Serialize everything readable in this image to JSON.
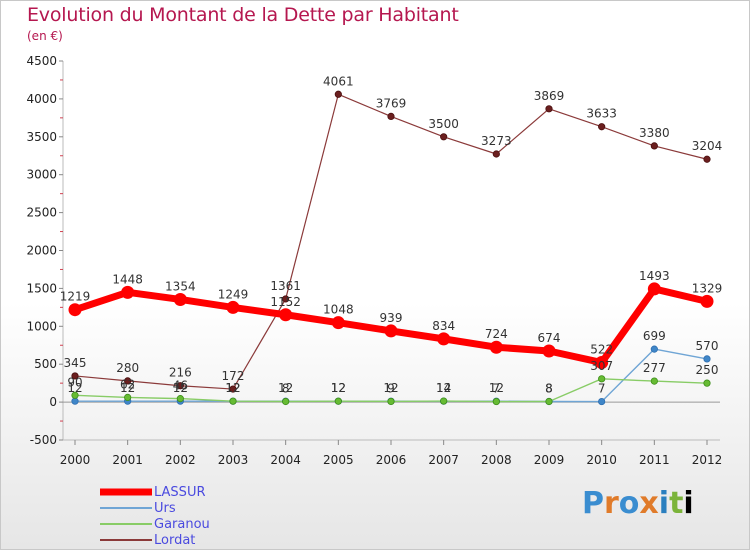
{
  "title": "Evolution du Montant de la Dette par Habitant",
  "subtitle": "(en €)",
  "logo_text": "Proxiti",
  "chart_data": {
    "type": "line",
    "title": "Evolution du Montant de la Dette par Habitant",
    "ylabel": "(en €)",
    "xlabel": "",
    "categories": [
      "2000",
      "2001",
      "2002",
      "2003",
      "2004",
      "2005",
      "2006",
      "2007",
      "2008",
      "2009",
      "2010",
      "2011",
      "2012"
    ],
    "ylim": [
      -500,
      4500
    ],
    "yticks": [
      -500,
      0,
      500,
      1000,
      1500,
      2000,
      2500,
      3000,
      3500,
      4000,
      4500
    ],
    "grid": false,
    "legend_position": "bottom-left",
    "series": [
      {
        "name": "LASSUR",
        "color": "#ff0000",
        "values": [
          1219,
          1448,
          1354,
          1249,
          1152,
          1048,
          939,
          834,
          724,
          674,
          522,
          1493,
          1329
        ],
        "labels": [
          "1219",
          "1448",
          "1354",
          "1249",
          "1152",
          "1048",
          "939",
          "834",
          "724",
          "674",
          "522",
          "1493",
          "1329"
        ]
      },
      {
        "name": "Urs",
        "color": "#6fa5d5",
        "values": [
          12,
          12,
          12,
          12,
          12,
          12,
          12,
          12,
          12,
          8,
          7,
          699,
          570
        ],
        "labels": [
          "12",
          "12",
          "12",
          "12",
          "12",
          "12",
          "12",
          "12",
          "12",
          "8",
          "7",
          "699",
          "570"
        ]
      },
      {
        "name": "Garanou",
        "color": "#88cc66",
        "values": [
          90,
          62,
          46,
          12,
          8,
          12,
          9,
          14,
          7,
          8,
          307,
          277,
          250
        ],
        "labels": [
          "90",
          "62",
          "46",
          "12",
          "8",
          "12",
          "9",
          "14",
          "7",
          "8",
          "307",
          "277",
          "250"
        ]
      },
      {
        "name": "Lordat",
        "color": "#8b3a3a",
        "values": [
          345,
          280,
          216,
          172,
          1361,
          4061,
          3769,
          3500,
          3273,
          3869,
          3633,
          3380,
          3204
        ],
        "labels": [
          "345",
          "280",
          "216",
          "172",
          "1361",
          "4061",
          "3769",
          "3500",
          "3273",
          "3869",
          "3633",
          "3380",
          "3204"
        ]
      }
    ]
  }
}
